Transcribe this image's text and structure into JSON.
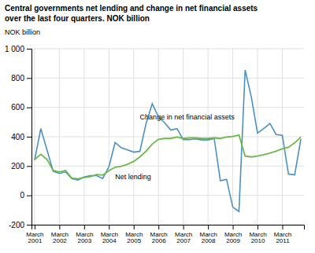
{
  "chart_data": {
    "type": "line",
    "title": "Central governments net lending and change in net financial assets",
    "subtitle": "over the last four quarters. NOK billion",
    "ylabel": "NOK billion",
    "categories": [
      "March\n2001",
      null,
      null,
      null,
      "March\n2002",
      null,
      null,
      null,
      "March\n2003",
      null,
      null,
      null,
      "March\n2004",
      null,
      null,
      null,
      "March\n2005",
      null,
      null,
      null,
      "March\n2006",
      null,
      null,
      null,
      "March\n2007",
      null,
      null,
      null,
      "March\n2008",
      null,
      null,
      null,
      "March\n2009",
      null,
      null,
      null,
      "March\n2010",
      null,
      null,
      null,
      "March\n2011",
      null,
      null,
      null
    ],
    "series": [
      {
        "name": "Net lending",
        "color": "#4A90C4",
        "values": [
          240,
          455,
          310,
          165,
          150,
          160,
          115,
          105,
          125,
          135,
          135,
          115,
          195,
          360,
          325,
          310,
          295,
          300,
          490,
          625,
          535,
          495,
          445,
          455,
          380,
          380,
          385,
          378,
          378,
          388,
          100,
          110,
          -80,
          -110,
          855,
          670,
          425,
          455,
          490,
          415,
          410,
          145,
          140,
          385
        ]
      },
      {
        "name": "Change in net financial assets",
        "color": "#6DB84A",
        "values": [
          245,
          280,
          245,
          170,
          160,
          170,
          118,
          113,
          122,
          128,
          142,
          138,
          168,
          192,
          198,
          212,
          232,
          262,
          302,
          350,
          382,
          388,
          388,
          398,
          388,
          392,
          392,
          388,
          388,
          392,
          388,
          398,
          402,
          412,
          268,
          262,
          268,
          278,
          288,
          302,
          318,
          328,
          358,
          398
        ]
      }
    ],
    "ylim": [
      -200,
      1000
    ],
    "yticks": [
      -200,
      0,
      200,
      400,
      600,
      800,
      {
        "value": 1000,
        "label": "1 000"
      }
    ],
    "grid": true,
    "annotations": [
      {
        "text": "Change in net financial assets",
        "x": 17,
        "y": 510
      },
      {
        "text": "Net lending",
        "x": 13,
        "y": 148
      }
    ]
  }
}
